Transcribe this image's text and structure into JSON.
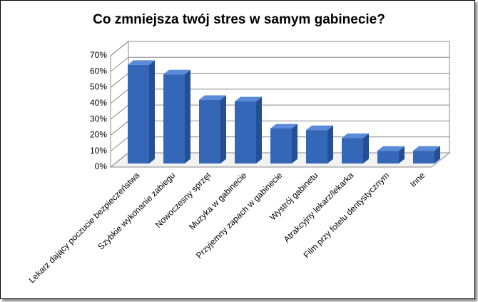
{
  "chart_data": {
    "type": "bar3d",
    "title": "Co zmniejsza twój stres w samym gabinecie?",
    "categories": [
      "Lekarz dający poczucie bezpieczeństwa",
      "Szybkie wykonanie zabiegu",
      "Nowoczesny sprzęt",
      "Muzyka w gabinecie",
      "Przyjemny zapach w gabinecie",
      "Wystrój gabinetu",
      "Atrakcyjny lekarz/lekarka",
      "Film przy fotelu dentystycznym",
      "Inne"
    ],
    "values": [
      62,
      56,
      40,
      39,
      22,
      21,
      16,
      8,
      8
    ],
    "color": "#3567b8",
    "ylim": [
      0,
      70
    ],
    "yticks": [
      {
        "value": 0,
        "label": "0%"
      },
      {
        "value": 10,
        "label": "10%"
      },
      {
        "value": 20,
        "label": "20%"
      },
      {
        "value": 30,
        "label": "30%"
      },
      {
        "value": 40,
        "label": "40%"
      },
      {
        "value": 50,
        "label": "50%"
      },
      {
        "value": 60,
        "label": "60%"
      },
      {
        "value": 70,
        "label": "70%"
      }
    ],
    "grid": true
  }
}
